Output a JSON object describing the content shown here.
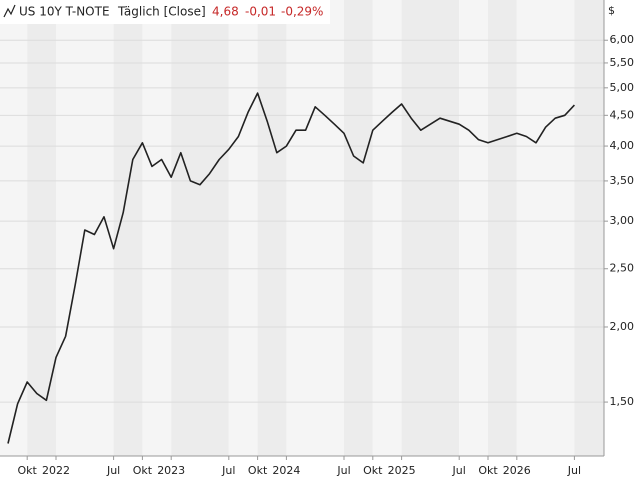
{
  "chart_data": {
    "type": "line",
    "title": "US 10Y T-NOTE",
    "subtitle": "Täglich [Close]",
    "annotations": [
      "4,68",
      "-0,01",
      "-0,29%"
    ],
    "ylabel": "$",
    "categories": [
      null,
      null,
      "Okt",
      null,
      null,
      "2022",
      null,
      null,
      null,
      null,
      null,
      "Jul",
      null,
      null,
      "Okt",
      null,
      null,
      "2023",
      null,
      null,
      null,
      null,
      null,
      "Jul",
      null,
      null,
      "Okt",
      null,
      null,
      "2024",
      null,
      null,
      null,
      null,
      null,
      "Jul",
      null,
      null,
      "Okt",
      null,
      null,
      "2025",
      null,
      null,
      null,
      null,
      null,
      "Jul",
      null,
      null,
      "Okt",
      null,
      null,
      "2026",
      null,
      null,
      null,
      null,
      null,
      "Jul"
    ],
    "values": [
      1.28,
      1.49,
      1.62,
      1.55,
      1.51,
      1.78,
      1.93,
      2.35,
      2.9,
      2.85,
      3.05,
      2.7,
      3.1,
      3.8,
      4.05,
      3.7,
      3.8,
      3.55,
      3.9,
      3.5,
      3.45,
      3.6,
      3.8,
      3.95,
      4.15,
      4.55,
      4.9,
      4.4,
      3.9,
      4.0,
      4.25,
      4.25,
      4.65,
      4.5,
      4.35,
      4.2,
      3.85,
      3.75,
      4.25,
      4.4,
      4.55,
      4.7,
      4.45,
      4.25,
      4.35,
      4.45,
      4.4,
      4.35,
      4.25,
      4.1,
      4.05,
      4.1,
      4.15,
      4.2,
      4.15,
      4.05,
      4.3,
      4.45,
      4.5,
      4.68
    ],
    "color": "#222222",
    "log": true,
    "grid": true,
    "ylim": [
      1.22,
      7.0
    ],
    "yticks": [
      {
        "value": 1.5,
        "label": "1,50"
      },
      {
        "value": 2,
        "label": "2,00"
      },
      {
        "value": 2.5,
        "label": "2,50"
      },
      {
        "value": 3,
        "label": "3,00"
      },
      {
        "value": 3.5,
        "label": "3,50"
      },
      {
        "value": 4,
        "label": "4,00"
      },
      {
        "value": 4.5,
        "label": "4,50"
      },
      {
        "value": 5,
        "label": "5,00"
      },
      {
        "value": 5.5,
        "label": "5,50"
      },
      {
        "value": 6,
        "label": "6,00"
      }
    ]
  }
}
